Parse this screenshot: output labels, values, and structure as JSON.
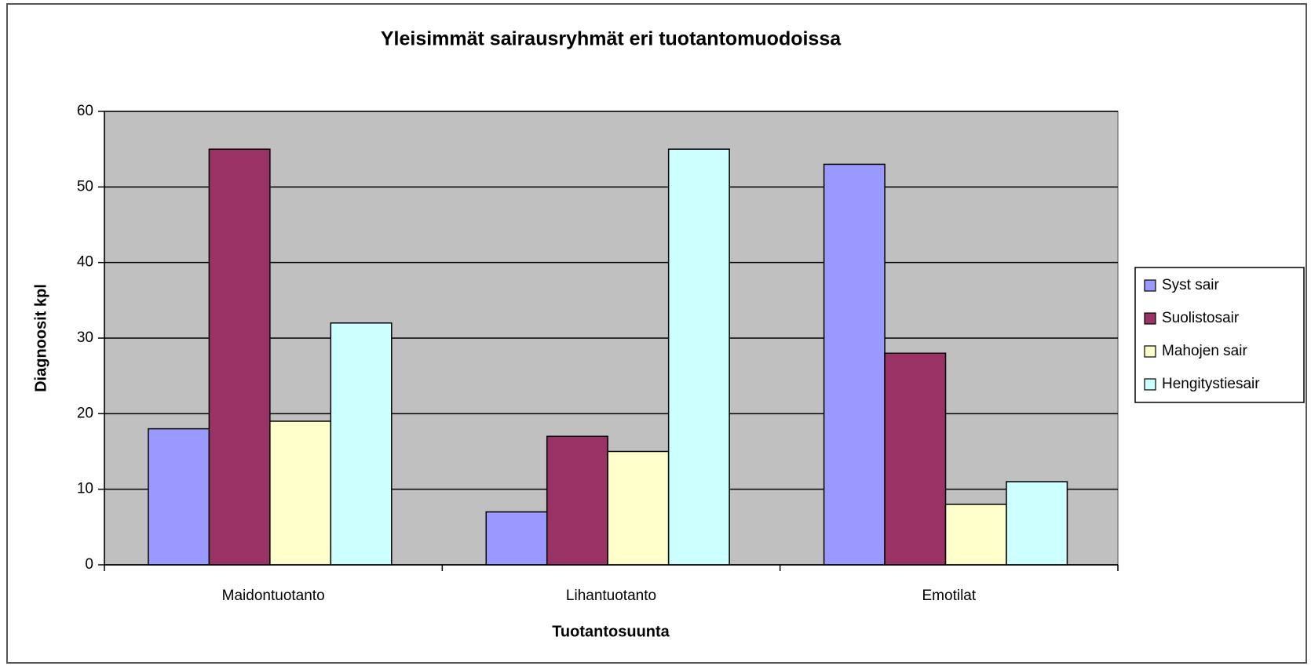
{
  "chart_data": {
    "type": "bar",
    "title": "Yleisimmät sairausryhmät eri tuotantomuodoissa",
    "x_label": "Tuotantosuunta",
    "y_label": "Diagnoosit kpl",
    "categories": [
      "Maidontuotanto",
      "Lihantuotanto",
      "Emotilat"
    ],
    "series": [
      {
        "name": "Syst sair",
        "color": "#9999ff",
        "values": [
          18,
          7,
          53
        ]
      },
      {
        "name": "Suolistosair",
        "color": "#993366",
        "values": [
          55,
          17,
          28
        ]
      },
      {
        "name": "Mahojen sair",
        "color": "#ffffcc",
        "values": [
          19,
          15,
          8
        ]
      },
      {
        "name": "Hengitystiesair",
        "color": "#ccffff",
        "values": [
          32,
          55,
          11
        ]
      }
    ],
    "ylim": [
      0,
      60
    ],
    "yticks": [
      0,
      10,
      20,
      30,
      40,
      50,
      60
    ],
    "grid": true,
    "legend": "right"
  }
}
